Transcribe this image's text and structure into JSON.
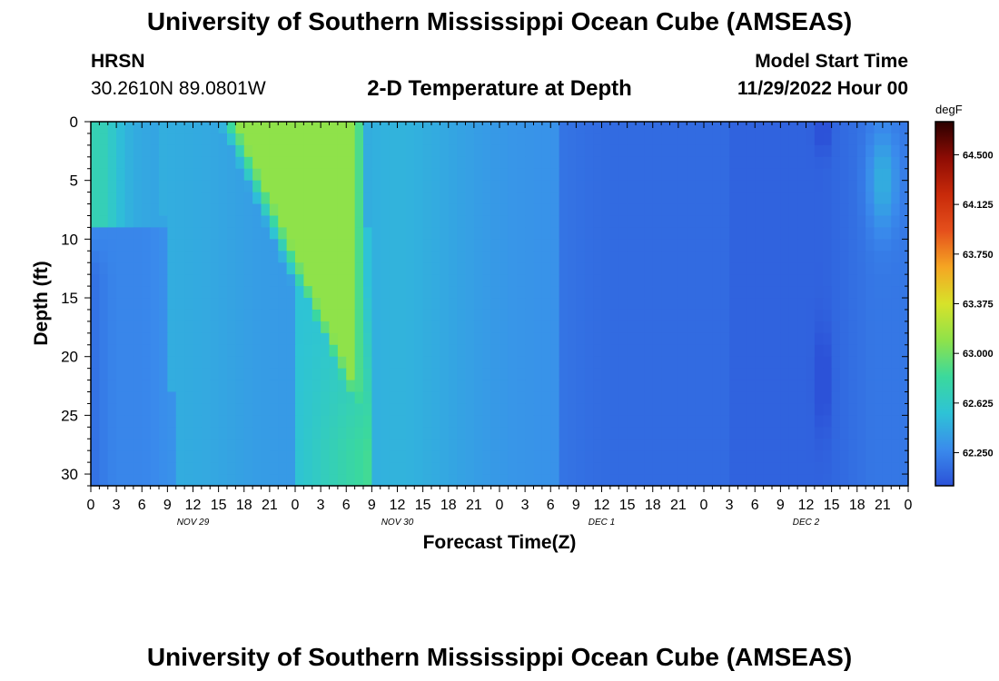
{
  "header": {
    "title": "University of Southern Mississippi Ocean Cube (AMSEAS)",
    "station": "HRSN",
    "location": "30.2610N  89.0801W",
    "subtitle": "2-D Temperature at Depth",
    "model_start_label": "Model Start Time",
    "model_start_value": "11/29/2022 Hour 00"
  },
  "footer": {
    "title": "University of Southern Mississippi Ocean Cube (AMSEAS)"
  },
  "chart_data": {
    "type": "heatmap",
    "title": "2-D Temperature at Depth",
    "xlabel": "Forecast Time(Z)",
    "ylabel": "Depth (ft)",
    "x_tick_labels": [
      "0",
      "3",
      "6",
      "9",
      "12",
      "15",
      "18",
      "21",
      "0",
      "3",
      "6",
      "9",
      "12",
      "15",
      "18",
      "21",
      "0",
      "3",
      "6",
      "9",
      "12",
      "15",
      "18",
      "21",
      "0",
      "3",
      "6",
      "9",
      "12",
      "15",
      "18",
      "21",
      "0"
    ],
    "x_hours": [
      0,
      3,
      6,
      9,
      12,
      15,
      18,
      21,
      24,
      27,
      30,
      33,
      36,
      39,
      42,
      45,
      48,
      51,
      54,
      57,
      60,
      63,
      66,
      69,
      72,
      75,
      78,
      81,
      84,
      87,
      90,
      93,
      96
    ],
    "day_labels": [
      "NOV 29",
      "NOV 30",
      "DEC 1",
      "DEC 2"
    ],
    "xlim": [
      0,
      96
    ],
    "y_ticks": [
      0,
      5,
      10,
      15,
      20,
      25,
      30
    ],
    "ylim": [
      0,
      31
    ],
    "y_inverted": true,
    "colorbar": {
      "unit": "degF",
      "ticks": [
        "64.500",
        "64.125",
        "63.750",
        "63.375",
        "63.000",
        "62.625",
        "62.250"
      ],
      "tick_values": [
        64.5,
        64.125,
        63.75,
        63.375,
        63.0,
        62.625,
        62.25
      ],
      "range": [
        62.0,
        64.75
      ]
    },
    "colormap": [
      "#2c52d8",
      "#3a8bec",
      "#2ec3d6",
      "#3bd99c",
      "#8fe24a",
      "#d7e22a",
      "#f5a623",
      "#e5501c",
      "#c82a0a",
      "#8e0c04",
      "#2a0000"
    ],
    "grid": false,
    "legend": "colorbar-right"
  }
}
